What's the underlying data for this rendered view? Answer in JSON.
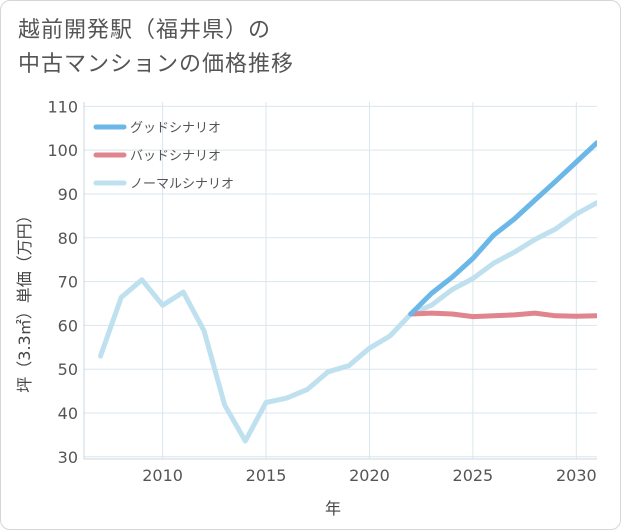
{
  "title_lines": [
    "越前開発駅（福井県）の",
    "中古マンションの価格推移"
  ],
  "chart_data": {
    "type": "line",
    "title": "越前開発駅（福井県）の中古マンションの価格推移",
    "xlabel": "年",
    "ylabel": "坪（3.3㎡）単価（万円）",
    "xlim": [
      2006.2,
      2031
    ],
    "ylim": [
      29.5,
      111
    ],
    "xticks": [
      2010,
      2015,
      2020,
      2025,
      2030
    ],
    "yticks": [
      30,
      40,
      50,
      60,
      70,
      80,
      90,
      100,
      110
    ],
    "grid": true,
    "legend_position": "top-left",
    "series": [
      {
        "name": "グッドシナリオ",
        "color": "#6bb7e8",
        "x": [
          2022,
          2023,
          2024,
          2025,
          2026,
          2027,
          2028,
          2029,
          2030,
          2031
        ],
        "y": [
          62.6,
          67.3,
          71.0,
          75.3,
          80.6,
          84.3,
          88.6,
          92.9,
          97.3,
          101.7
        ]
      },
      {
        "name": "バッドシナリオ",
        "color": "#e0848e",
        "x": [
          2022,
          2023,
          2024,
          2025,
          2026,
          2027,
          2028,
          2029,
          2030,
          2031
        ],
        "y": [
          62.6,
          62.8,
          62.6,
          62.0,
          62.2,
          62.4,
          62.8,
          62.2,
          62.1,
          62.2
        ]
      },
      {
        "name": "ノーマルシナリオ",
        "color": "#bfe0ee",
        "x": [
          2007,
          2008,
          2009,
          2010,
          2011,
          2012,
          2013,
          2014,
          2015,
          2016,
          2017,
          2018,
          2019,
          2020,
          2021,
          2022,
          2023,
          2024,
          2025,
          2026,
          2027,
          2028,
          2029,
          2030,
          2031
        ],
        "y": [
          53.0,
          66.4,
          70.4,
          64.6,
          67.6,
          58.8,
          41.8,
          33.6,
          42.4,
          43.4,
          45.4,
          49.4,
          50.8,
          54.8,
          57.6,
          62.6,
          64.6,
          68.2,
          70.7,
          74.2,
          76.7,
          79.6,
          82.0,
          85.4,
          88.0
        ]
      }
    ]
  }
}
